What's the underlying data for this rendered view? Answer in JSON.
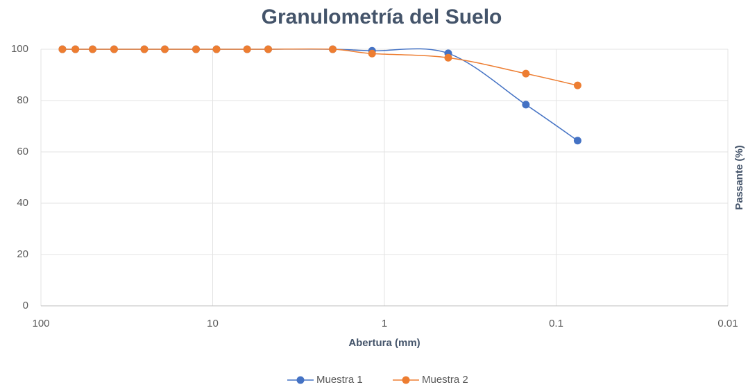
{
  "chart_data": {
    "type": "line",
    "title": "Granulometría del Suelo",
    "x_label": "Abertura (mm)",
    "y_label": "Passante (%)",
    "x": [
      75,
      63,
      50,
      37.5,
      25,
      19,
      12.5,
      9.5,
      6.3,
      4.75,
      2,
      1.18,
      0.425,
      0.15,
      0.075
    ],
    "series": [
      {
        "name": "Muestra 1",
        "color": "#4472c4",
        "values": [
          100,
          100,
          100,
          100,
          100,
          100,
          100,
          100,
          100,
          100,
          100,
          99.4,
          98.4,
          78.4,
          64.4
        ]
      },
      {
        "name": "Muestra 2",
        "color": "#ed7d31",
        "values": [
          100,
          100,
          100,
          100,
          100,
          100,
          100,
          100,
          100,
          100,
          100,
          98.3,
          96.7,
          90.5,
          85.9
        ]
      }
    ],
    "xlim": [
      100,
      0.01
    ],
    "xticks": [
      100,
      10,
      1,
      0.1,
      0.01
    ],
    "log_x": true,
    "ylim": [
      0,
      100
    ],
    "yticks": [
      0,
      20,
      40,
      60,
      80,
      100
    ],
    "grid": true,
    "legend": "bottom"
  }
}
